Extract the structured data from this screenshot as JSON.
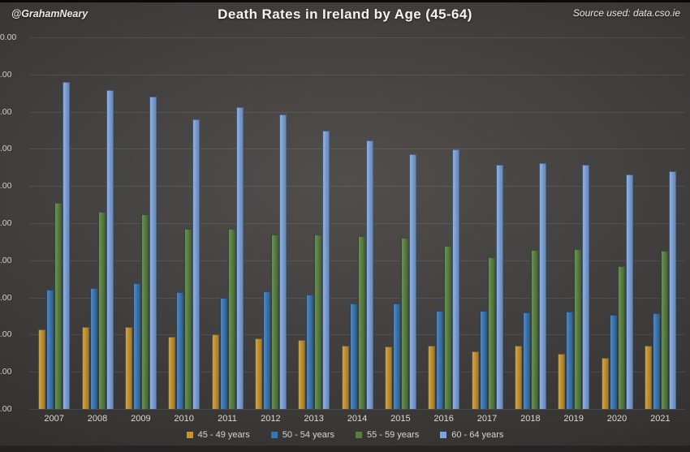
{
  "header": {
    "attribution": "@GrahamNeary",
    "title": "Death Rates in Ireland by Age (45-64)",
    "source": "Source used: data.cso.ie"
  },
  "chart_data": {
    "type": "bar",
    "title": "Death Rates in Ireland by Age (45-64)",
    "categories": [
      "2007",
      "2008",
      "2009",
      "2010",
      "2011",
      "2012",
      "2013",
      "2014",
      "2015",
      "2016",
      "2017",
      "2018",
      "2019",
      "2020",
      "2021"
    ],
    "series": [
      {
        "name": "45 - 49 years",
        "color": "#C9952B",
        "values": [
          2.15,
          2.2,
          2.2,
          1.95,
          2.0,
          1.9,
          1.85,
          1.7,
          1.68,
          1.7,
          1.55,
          1.7,
          1.48,
          1.38,
          1.7
        ]
      },
      {
        "name": "50 - 54 years",
        "color": "#3576B8",
        "values": [
          3.2,
          3.25,
          3.38,
          3.15,
          3.0,
          3.17,
          3.07,
          2.84,
          2.85,
          2.64,
          2.65,
          2.6,
          2.62,
          2.53,
          2.58
        ]
      },
      {
        "name": "55 - 59 years",
        "color": "#55803A",
        "values": [
          5.55,
          5.3,
          5.25,
          4.85,
          4.85,
          4.7,
          4.7,
          4.65,
          4.6,
          4.4,
          4.08,
          4.28,
          4.3,
          3.85,
          4.25
        ]
      },
      {
        "name": "60 - 64 years",
        "color": "#7CA4DF",
        "values": [
          8.8,
          8.58,
          8.4,
          7.8,
          8.12,
          7.92,
          7.5,
          7.22,
          6.85,
          6.98,
          6.58,
          6.62,
          6.57,
          6.31,
          6.4
        ]
      }
    ],
    "xlabel": "",
    "ylabel": "",
    "ylim": [
      0,
      10
    ],
    "ytick_step": 1,
    "ytick_decimals": 2,
    "grid": true,
    "legend_position": "bottom"
  }
}
